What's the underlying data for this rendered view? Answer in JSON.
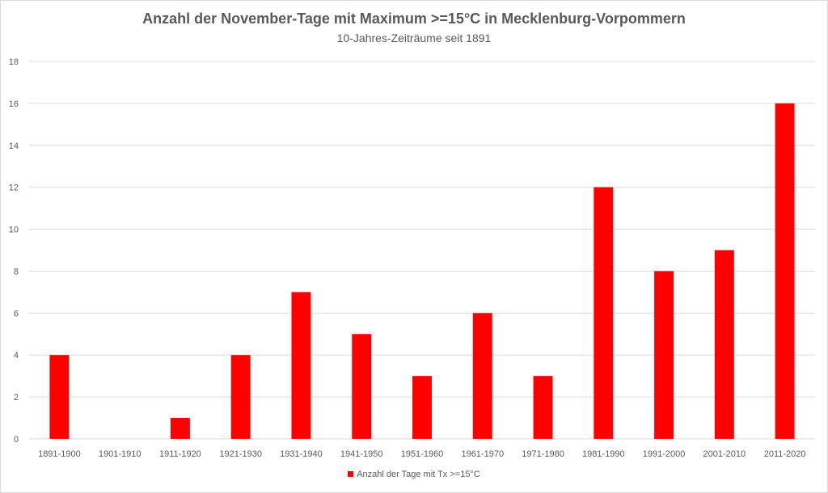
{
  "chart_data": {
    "type": "bar",
    "title": "Anzahl der November-Tage mit Maximum >=15°C in Mecklenburg-Vorpommern",
    "subtitle": "10-Jahres-Zeiträume seit 1891",
    "categories": [
      "1891-1900",
      "1901-1910",
      "1911-1920",
      "1921-1930",
      "1931-1940",
      "1941-1950",
      "1951-1960",
      "1961-1970",
      "1971-1980",
      "1981-1990",
      "1991-2000",
      "2001-2010",
      "2011-2020"
    ],
    "series": [
      {
        "name": "Anzahl der Tage mit Tx >=15°C",
        "values": [
          4,
          0,
          1,
          4,
          7,
          5,
          3,
          6,
          3,
          12,
          8,
          9,
          16
        ],
        "color": "#ff0000"
      }
    ],
    "xlabel": "",
    "ylabel": "",
    "ylim": [
      0,
      18
    ],
    "yticks": [
      0,
      2,
      4,
      6,
      8,
      10,
      12,
      14,
      16,
      18
    ],
    "grid": true,
    "gridColor": "#d9d9d9",
    "legend_position": "bottom"
  }
}
